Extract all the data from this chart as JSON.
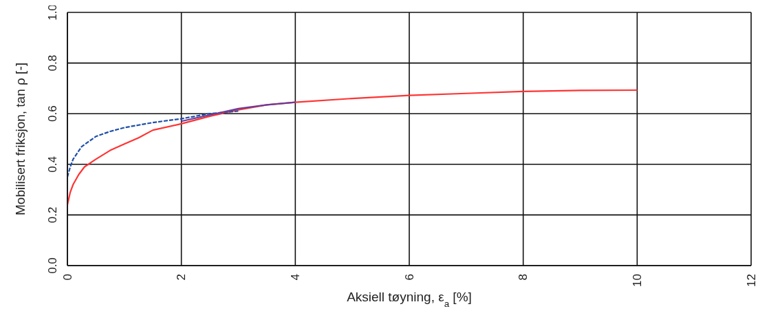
{
  "chart_data": {
    "type": "line",
    "xlabel": "Aksiell tøyning, ε$_{a}$ [%]",
    "ylabel": "Mobilisert friksjon, tan ρ  [-]",
    "xlim": [
      0,
      12
    ],
    "xticks": [
      0,
      2,
      4,
      6,
      8,
      10,
      12
    ],
    "ylim": [
      0,
      1
    ],
    "yticks": [
      {
        "value": 0,
        "label": "0.0"
      },
      {
        "value": 0.2,
        "label": "0.2"
      },
      {
        "value": 0.4,
        "label": "0.4"
      },
      {
        "value": 0.6,
        "label": "0.6"
      },
      {
        "value": 0.8,
        "label": "0.8"
      },
      {
        "value": 1,
        "label": "1.0"
      }
    ],
    "grid": true,
    "marker": "none",
    "series": [
      {
        "color": "#ff3333",
        "line_style": "solid",
        "x": [
          0,
          0.05,
          0.1,
          0.2,
          0.3,
          0.5,
          0.75,
          1,
          1.25,
          1.5,
          2,
          2.5,
          3,
          3.5,
          4,
          5,
          6,
          7,
          8,
          9,
          10
        ],
        "values": [
          0.24,
          0.29,
          0.32,
          0.36,
          0.39,
          0.42,
          0.455,
          0.48,
          0.505,
          0.535,
          0.56,
          0.59,
          0.615,
          0.635,
          0.645,
          0.66,
          0.672,
          0.68,
          0.688,
          0.692,
          0.693
        ]
      },
      {
        "color": "#1f4fa8",
        "line_style": "dashed",
        "x": [
          0,
          0.05,
          0.1,
          0.25,
          0.5,
          0.75,
          1,
          1.5,
          2,
          2.5,
          3
        ],
        "values": [
          0.35,
          0.39,
          0.42,
          0.47,
          0.51,
          0.53,
          0.545,
          0.565,
          0.58,
          0.6,
          0.61
        ]
      },
      {
        "color": "#6a3d9a",
        "line_style": "solid",
        "x": [
          2,
          2.5,
          3,
          3.5,
          4
        ],
        "values": [
          0.57,
          0.595,
          0.62,
          0.635,
          0.645
        ]
      }
    ]
  }
}
